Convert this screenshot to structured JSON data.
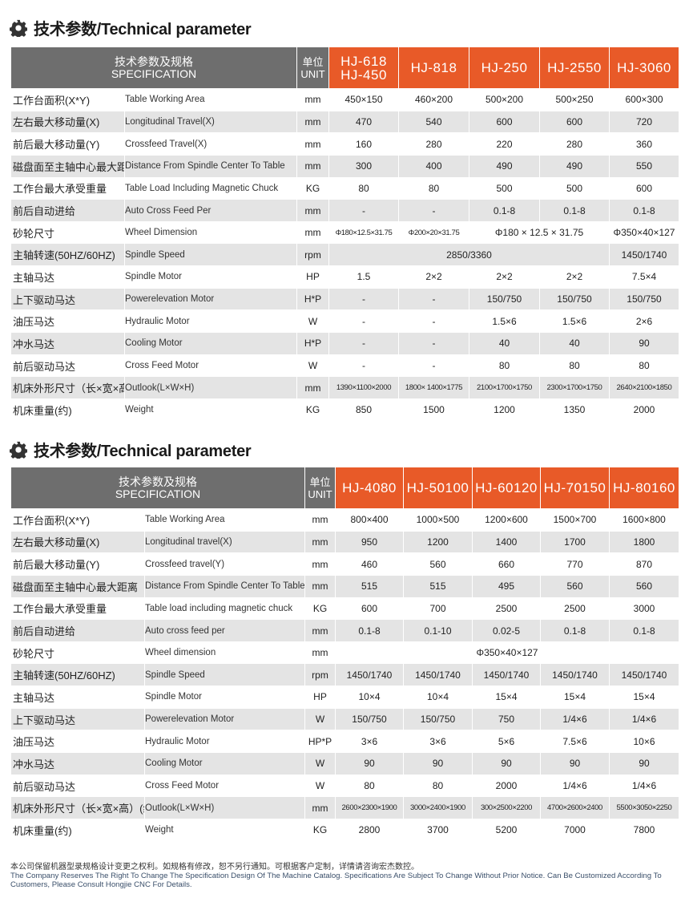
{
  "sections": [
    {
      "title": "技术参数/Technical parameter",
      "header": {
        "spec_cn": "技术参数及规格",
        "spec_en": "SPECIFICATION",
        "unit_cn": "单位",
        "unit_en": "UNIT",
        "models": [
          "HJ-618\nHJ-450",
          "HJ-818",
          "HJ-250",
          "HJ-2550",
          "HJ-3060"
        ]
      },
      "rows": [
        {
          "cn": "工作台面积(X*Y)",
          "en": "Table Working Area",
          "unit": "mm",
          "cells": [
            "450×150",
            "460×200",
            "500×200",
            "500×250",
            "600×300"
          ]
        },
        {
          "cn": "左右最大移动量(X)",
          "en": "Longitudinal Travel(X)",
          "unit": "mm",
          "cells": [
            "470",
            "540",
            "600",
            "600",
            "720"
          ]
        },
        {
          "cn": "前后最大移动量(Y)",
          "en": "Crossfeed Travel(X)",
          "unit": "mm",
          "cells": [
            "160",
            "280",
            "220",
            "280",
            "360"
          ]
        },
        {
          "cn": "磁盘面至主轴中心最大距离",
          "en": "Distance From Spindle Center To Table",
          "unit": "mm",
          "cells": [
            "300",
            "400",
            "490",
            "490",
            "550"
          ]
        },
        {
          "cn": "工作台最大承受重量",
          "en": "Table Load Including Magnetic Chuck",
          "unit": "KG",
          "cells": [
            "80",
            "80",
            "500",
            "500",
            "600"
          ]
        },
        {
          "cn": "前后自动进给",
          "en": "Auto Cross Feed Per",
          "unit": "mm",
          "cells": [
            "-",
            "-",
            "0.1-8",
            "0.1-8",
            "0.1-8"
          ]
        },
        {
          "cn": "砂轮尺寸",
          "en": "Wheel Dimension",
          "unit": "mm",
          "cells": [
            "Φ180×12.5×31.75",
            "Φ200×20×31.75",
            {
              "text": "Φ180 × 12.5 × 31.75",
              "colspan": 2
            },
            "Φ350×40×127"
          ]
        },
        {
          "cn": "主轴转速(50HZ/60HZ)",
          "en": "Spindle Speed",
          "unit": "rpm",
          "cells": [
            {
              "text": "2850/3360",
              "colspan": 4
            },
            "1450/1740"
          ]
        },
        {
          "cn": "主轴马达",
          "en": "Spindle Motor",
          "unit": "HP",
          "cells": [
            "1.5",
            "2×2",
            "2×2",
            "2×2",
            "7.5×4"
          ]
        },
        {
          "cn": "上下驱动马达",
          "en": "Powerelevation Motor",
          "unit": "H*P",
          "cells": [
            "-",
            "-",
            "150/750",
            "150/750",
            "150/750"
          ]
        },
        {
          "cn": "油压马达",
          "en": "Hydraulic Motor",
          "unit": "W",
          "cells": [
            "-",
            "-",
            "1.5×6",
            "1.5×6",
            "2×6"
          ]
        },
        {
          "cn": "冲水马达",
          "en": "Cooling Motor",
          "unit": "H*P",
          "cells": [
            "-",
            "-",
            "40",
            "40",
            "90"
          ]
        },
        {
          "cn": "前后驱动马达",
          "en": "Cross Feed Motor",
          "unit": "W",
          "cells": [
            "-",
            "-",
            "80",
            "80",
            "80"
          ]
        },
        {
          "cn": "机床外形尺寸（长×宽×高）(约)",
          "en": "Outlook(L×W×H)",
          "unit": "mm",
          "cells": [
            "1390×1100×2000",
            "1800× 1400×1775",
            "2100×1700×1750",
            "2300×1700×1750",
            "2640×2100×1850"
          ]
        },
        {
          "cn": "机床重量(约)",
          "en": "Weight",
          "unit": "KG",
          "cells": [
            "850",
            "1500",
            "1200",
            "1350",
            "2000"
          ]
        }
      ]
    },
    {
      "title": "技术参数/Technical parameter",
      "header": {
        "spec_cn": "技术参数及规格",
        "spec_en": "SPECIFICATION",
        "unit_cn": "单位",
        "unit_en": "UNIT",
        "models": [
          "HJ-4080",
          "HJ-50100",
          "HJ-60120",
          "HJ-70150",
          "HJ-80160"
        ]
      },
      "rows": [
        {
          "cn": "工作台面积(X*Y)",
          "en": "Table Working Area",
          "unit": "mm",
          "cells": [
            "800×400",
            "1000×500",
            "1200×600",
            "1500×700",
            "1600×800"
          ]
        },
        {
          "cn": "左右最大移动量(X)",
          "en": "Longitudinal travel(X)",
          "unit": "mm",
          "cells": [
            "950",
            "1200",
            "1400",
            "1700",
            "1800"
          ]
        },
        {
          "cn": "前后最大移动量(Y)",
          "en": "Crossfeed travel(Y)",
          "unit": "mm",
          "cells": [
            "460",
            "560",
            "660",
            "770",
            "870"
          ]
        },
        {
          "cn": "磁盘面至主轴中心最大距离",
          "en": "Distance From Spindle Center To Table",
          "unit": "mm",
          "cells": [
            "515",
            "515",
            "495",
            "560",
            "560"
          ]
        },
        {
          "cn": "工作台最大承受重量",
          "en": "Table load including magnetic chuck",
          "unit": "KG",
          "cells": [
            "600",
            "700",
            "2500",
            "2500",
            "3000"
          ]
        },
        {
          "cn": "前后自动进给",
          "en": "Auto cross feed per",
          "unit": "mm",
          "cells": [
            "0.1-8",
            "0.1-10",
            "0.02-5",
            "0.1-8",
            "0.1-8"
          ]
        },
        {
          "cn": "砂轮尺寸",
          "en": "Wheel dimension",
          "unit": "mm",
          "cells": [
            {
              "text": "Φ350×40×127",
              "colspan": 5
            }
          ]
        },
        {
          "cn": "主轴转速(50HZ/60HZ)",
          "en": "Spindle Speed",
          "unit": "rpm",
          "cells": [
            "1450/1740",
            "1450/1740",
            "1450/1740",
            "1450/1740",
            "1450/1740"
          ]
        },
        {
          "cn": "主轴马达",
          "en": "Spindle Motor",
          "unit": "HP",
          "cells": [
            "10×4",
            "10×4",
            "15×4",
            "15×4",
            "15×4"
          ]
        },
        {
          "cn": "上下驱动马达",
          "en": "Powerelevation Motor",
          "unit": "W",
          "cells": [
            "150/750",
            "150/750",
            "750",
            "1/4×6",
            "1/4×6"
          ]
        },
        {
          "cn": "油压马达",
          "en": "Hydraulic Motor",
          "unit": "HP*P",
          "cells": [
            "3×6",
            "3×6",
            "5×6",
            "7.5×6",
            "10×6"
          ]
        },
        {
          "cn": "冲水马达",
          "en": "Cooling Motor",
          "unit": "W",
          "cells": [
            "90",
            "90",
            "90",
            "90",
            "90"
          ]
        },
        {
          "cn": "前后驱动马达",
          "en": "Cross Feed Motor",
          "unit": "W",
          "cells": [
            "80",
            "80",
            "2000",
            "1/4×6",
            "1/4×6"
          ]
        },
        {
          "cn": "机床外形尺寸（长×宽×高）(约)",
          "en": "Outlook(L×W×H)",
          "unit": "mm",
          "cells": [
            "2600×2300×1900",
            "3000×2400×1900",
            "300×2500×2200",
            "4700×2600×2400",
            "5500×3050×2250"
          ]
        },
        {
          "cn": "机床重量(约)",
          "en": "Weight",
          "unit": "KG",
          "cells": [
            "2800",
            "3700",
            "5200",
            "7000",
            "7800"
          ]
        }
      ]
    }
  ],
  "footer": {
    "cn": "本公司保留机器型录规格设计变更之权利。如规格有修改，恕不另行通知。可根据客户定制，详情请咨询宏杰数控。",
    "en": "The Company Reserves The Right To Change The Specification Design Of The Machine Catalog. Specifications Are Subject To Change Without Prior Notice. Can Be Customized According To Customers, Please Consult Hongjie CNC For Details."
  },
  "colors": {
    "header_gray": "#6e6e6e",
    "model_orange": "#e85a28",
    "row_gray": "#e4e4e4"
  }
}
